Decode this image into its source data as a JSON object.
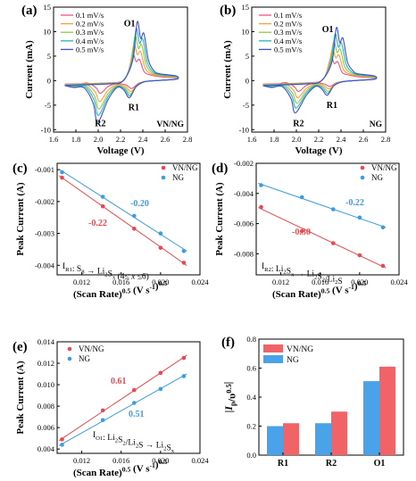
{
  "colors": {
    "v01": "#f0557a",
    "v02": "#f4a13a",
    "v03": "#8fc74a",
    "v04": "#27b6b0",
    "v05": "#3c4fd6",
    "vnng": "#e8484f",
    "ng": "#3d9be0",
    "vnng_bar": "#f06468",
    "ng_bar": "#4aa3e8"
  },
  "chart_data": [
    {
      "id": "a",
      "type": "line",
      "panel_label": "(a)",
      "xlabel": "Voltage (V)",
      "ylabel": "Current  (mA)",
      "xlim": [
        1.6,
        2.8
      ],
      "ylim": [
        -10.5,
        15
      ],
      "xticks": [
        "1.6",
        "1.8",
        "2.0",
        "2.2",
        "2.4",
        "2.6",
        "2.8"
      ],
      "yticks": [
        "-10",
        "-5",
        "0",
        "5",
        "10",
        "15"
      ],
      "legend": [
        "0.1 mV/s",
        "0.2 mV/s",
        "0.3 mV/s",
        "0.4 mV/s",
        "0.5 mV/s"
      ],
      "annotations": [
        "O1",
        "R1",
        "R2",
        "VN/NG"
      ],
      "series": [
        {
          "name": "0.1 mV/s",
          "color_key": "v01",
          "anodic_peak": 5.4,
          "cathodic_R1": -1.6,
          "cathodic_R2": -2.6,
          "x_shift": 0.0
        },
        {
          "name": "0.2 mV/s",
          "color_key": "v02",
          "anodic_peak": 7.4,
          "cathodic_R1": -2.2,
          "cathodic_R2": -4.3,
          "x_shift": 0.01
        },
        {
          "name": "0.3 mV/s",
          "color_key": "v03",
          "anodic_peak": 9.1,
          "cathodic_R1": -2.7,
          "cathodic_R2": -5.8,
          "x_shift": 0.02
        },
        {
          "name": "0.4 mV/s",
          "color_key": "v04",
          "anodic_peak": 10.6,
          "cathodic_R1": -3.1,
          "cathodic_R2": -7.1,
          "x_shift": 0.03
        },
        {
          "name": "0.5 mV/s",
          "color_key": "v05",
          "anodic_peak": 12.0,
          "cathodic_R1": -3.5,
          "cathodic_R2": -8.5,
          "x_shift": 0.04
        }
      ]
    },
    {
      "id": "b",
      "type": "line",
      "panel_label": "(b)",
      "xlabel": "Voltage (V)",
      "ylabel": "Current  (mA)",
      "xlim": [
        1.6,
        2.8
      ],
      "ylim": [
        -10.5,
        15
      ],
      "xticks": [
        "1.6",
        "1.8",
        "2.0",
        "2.2",
        "2.4",
        "2.6",
        "2.8"
      ],
      "yticks": [
        "-10",
        "-5",
        "0",
        "5",
        "10",
        "15"
      ],
      "legend": [
        "0.1 mV/s",
        "0.2 mV/s",
        "0.3 mV/s",
        "0.4 mV/s",
        "0.5 mV/s"
      ],
      "annotations": [
        "O1",
        "R1",
        "R2",
        "NG"
      ],
      "series": [
        {
          "name": "0.1 mV/s",
          "color_key": "v01",
          "anodic_peak": 4.8,
          "cathodic_R1": -1.2,
          "cathodic_R2": -2.2,
          "x_shift": 0.0
        },
        {
          "name": "0.2 mV/s",
          "color_key": "v02",
          "anodic_peak": 6.5,
          "cathodic_R1": -1.7,
          "cathodic_R2": -3.5,
          "x_shift": 0.012
        },
        {
          "name": "0.3 mV/s",
          "color_key": "v03",
          "anodic_peak": 8.0,
          "cathodic_R1": -2.2,
          "cathodic_R2": -4.6,
          "x_shift": 0.024
        },
        {
          "name": "0.4 mV/s",
          "color_key": "v04",
          "anodic_peak": 9.5,
          "cathodic_R1": -2.6,
          "cathodic_R2": -5.6,
          "x_shift": 0.036
        },
        {
          "name": "0.5 mV/s",
          "color_key": "v05",
          "anodic_peak": 10.8,
          "cathodic_R1": -3.0,
          "cathodic_R2": -6.6,
          "x_shift": 0.048
        }
      ]
    },
    {
      "id": "c",
      "type": "scatter",
      "panel_label": "(c)",
      "xlabel": "(Scan Rate)0.5 (V s-1)0.5",
      "ylabel": "Peak Current (A)",
      "xlim": [
        0.0095,
        0.024
      ],
      "ylim": [
        -0.0043,
        -0.0008
      ],
      "xticks": [
        "0.012",
        "0.016",
        "0.020",
        "0.024"
      ],
      "yticks": [
        "-0.001",
        "-0.002",
        "-0.003",
        "-0.004"
      ],
      "legend": [
        "VN/NG",
        "NG"
      ],
      "slope_labels": [
        "-0.22",
        "-0.20"
      ],
      "note": "IR1:  S8 → Li2Sx (4≤ x ≤6)",
      "x": [
        0.01,
        0.01414,
        0.01732,
        0.02,
        0.02236
      ],
      "series": [
        {
          "name": "VN/NG",
          "color_key": "vnng",
          "values": [
            -0.00125,
            -0.00215,
            -0.00285,
            -0.00345,
            -0.00392
          ]
        },
        {
          "name": "NG",
          "color_key": "ng",
          "values": [
            -0.00108,
            -0.00185,
            -0.00245,
            -0.003,
            -0.00355
          ]
        }
      ]
    },
    {
      "id": "d",
      "type": "scatter",
      "panel_label": "(d)",
      "xlabel": "(Scan Rate)0.5 (V s-1)0.5",
      "ylabel": "Peak Current (A)",
      "xlim": [
        0.0095,
        0.024
      ],
      "ylim": [
        -0.0094,
        -0.002
      ],
      "xticks": [
        "0.012",
        "0.016",
        "0.020",
        "0.024"
      ],
      "yticks": [
        "-0.002",
        "-0.004",
        "-0.006",
        "-0.008"
      ],
      "legend": [
        "VN/NG",
        "NG"
      ],
      "slope_labels": [
        "-0.30",
        "-0.22"
      ],
      "note": "IR2:  Li2Sx → Li2S2/Li2S",
      "x": [
        0.01,
        0.01414,
        0.01732,
        0.02,
        0.02236
      ],
      "series": [
        {
          "name": "VN/NG",
          "color_key": "vnng",
          "values": [
            -0.0049,
            -0.0065,
            -0.0073,
            -0.0081,
            -0.0088
          ]
        },
        {
          "name": "NG",
          "color_key": "ng",
          "values": [
            -0.00345,
            -0.00425,
            -0.00505,
            -0.0056,
            -0.00625
          ]
        }
      ]
    },
    {
      "id": "e",
      "type": "scatter",
      "panel_label": "(e)",
      "xlabel": "(Scan Rate)0.5 (V s-1)0.5",
      "ylabel": "Peak Current (A)",
      "xlim": [
        0.0095,
        0.024
      ],
      "ylim": [
        0.0036,
        0.014
      ],
      "xticks": [
        "0.012",
        "0.016",
        "0.020",
        "0.024"
      ],
      "yticks": [
        "0.004",
        "0.006",
        "0.008",
        "0.010",
        "0.012",
        "0.014"
      ],
      "legend": [
        "VN/NG",
        "NG"
      ],
      "slope_labels": [
        "0.61",
        "0.51"
      ],
      "note": "IO1:  Li2S2/Li2S → Li2Sx",
      "x": [
        0.01,
        0.01414,
        0.01732,
        0.02,
        0.02236
      ],
      "series": [
        {
          "name": "VN/NG",
          "color_key": "vnng",
          "values": [
            0.0049,
            0.0076,
            0.0095,
            0.0111,
            0.0125
          ]
        },
        {
          "name": "NG",
          "color_key": "ng",
          "values": [
            0.0044,
            0.0067,
            0.0083,
            0.0096,
            0.0108
          ]
        }
      ]
    },
    {
      "id": "f",
      "type": "bar",
      "panel_label": "(f)",
      "ylabel": "|Ip/υ0.5|",
      "ylim": [
        0.0,
        0.8
      ],
      "yticks": [
        "0.0",
        "0.2",
        "0.4",
        "0.6",
        "0.8"
      ],
      "categories": [
        "R1",
        "R2",
        "O1"
      ],
      "legend": [
        "VN/NG",
        "NG"
      ],
      "series": [
        {
          "name": "NG",
          "color_key": "ng_bar",
          "values": [
            0.2,
            0.22,
            0.51
          ]
        },
        {
          "name": "VN/NG",
          "color_key": "vnng_bar",
          "values": [
            0.22,
            0.3,
            0.61
          ]
        }
      ]
    }
  ]
}
